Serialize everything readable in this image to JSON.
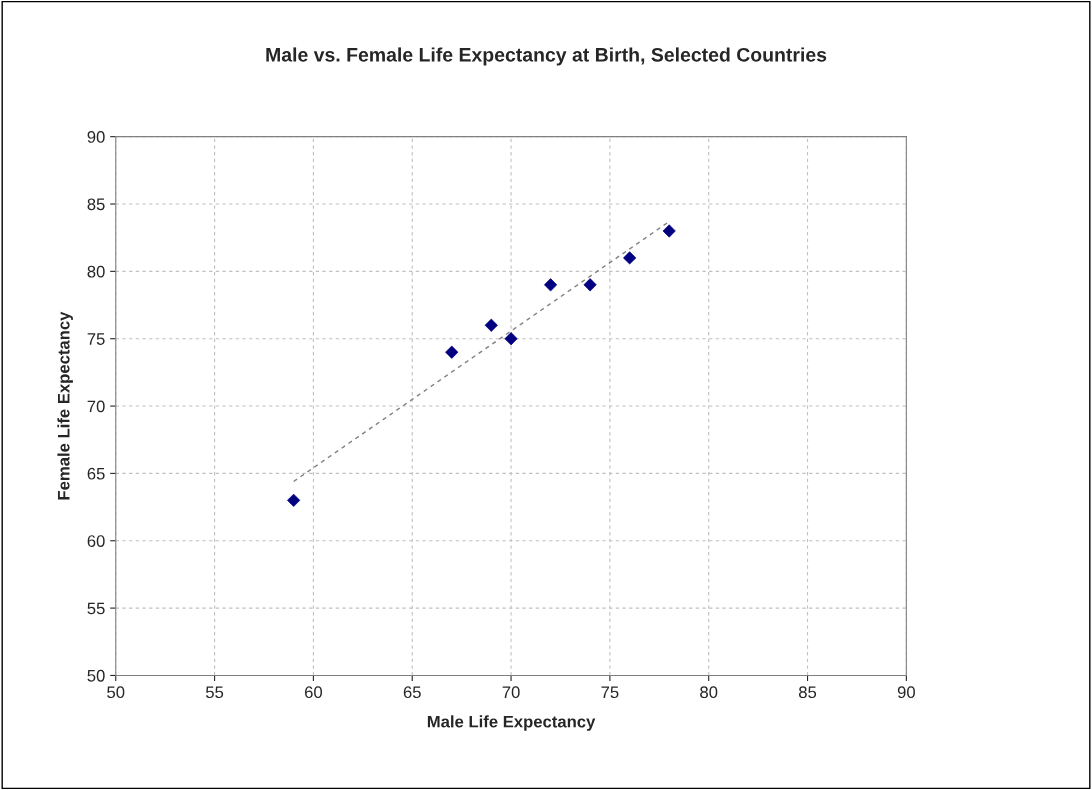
{
  "chart_data": {
    "type": "scatter",
    "title": "Male vs. Female Life Expectancy at Birth, Selected Countries",
    "xlabel": "Male Life Expectancy",
    "ylabel": "Female Life Expectancy",
    "series": [
      {
        "color": "#000080",
        "marker": "diamond",
        "x": [
          59,
          67,
          69,
          70,
          72,
          74,
          76,
          78
        ],
        "values": [
          63,
          74,
          76,
          75,
          79,
          79,
          81,
          83
        ]
      },
      {
        "type": "line",
        "color": "#808080",
        "line_style": "dashed",
        "marker": "none",
        "x": [
          59,
          78
        ],
        "values": [
          64.4,
          83.7
        ]
      }
    ],
    "xlim": [
      50,
      90
    ],
    "xticks": [
      50,
      55,
      60,
      65,
      70,
      75,
      80,
      85,
      90
    ],
    "ylim": [
      50,
      90
    ],
    "yticks": [
      50,
      55,
      60,
      65,
      70,
      75,
      80,
      85,
      90
    ],
    "grid": true,
    "legend": false
  }
}
